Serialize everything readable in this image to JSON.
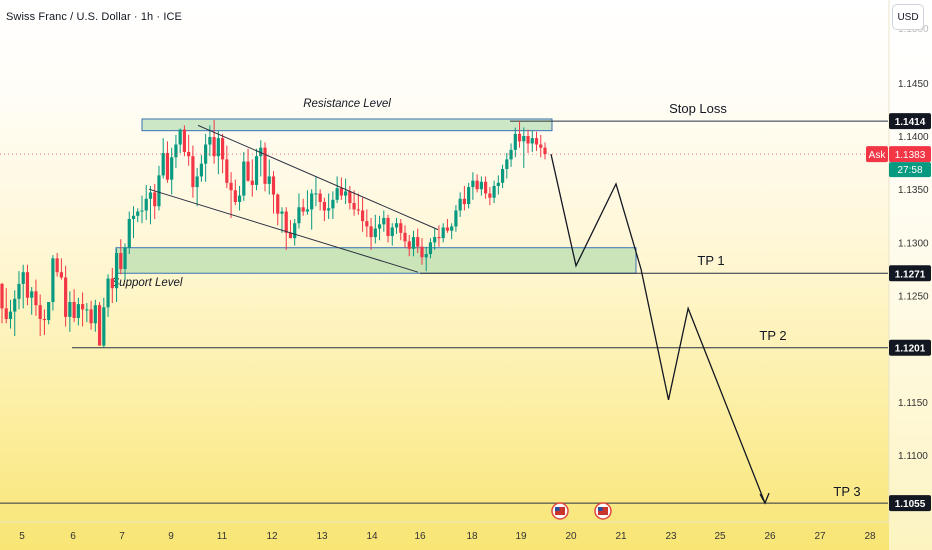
{
  "header": {
    "title": "Swiss Franc / U.S. Dollar · 1h · ICE",
    "currency_button": "USD"
  },
  "chart_data": {
    "type": "candlestick",
    "symbol": "Swiss Franc / U.S. Dollar",
    "timeframe": "1h",
    "exchange": "ICE",
    "price_axis": {
      "ticks": [
        1.11,
        1.115,
        1.125,
        1.13,
        1.135,
        1.14,
        1.145
      ],
      "tick_labels": [
        "1.1100",
        "1.1150",
        "1.1250",
        "1.1300",
        "1.1350",
        "1.1400",
        "1.1450"
      ],
      "range": [
        1.104,
        1.15
      ],
      "currency": "USD"
    },
    "time_axis": {
      "labels": [
        "5",
        "6",
        "7",
        "9",
        "11",
        "12",
        "13",
        "14",
        "16",
        "18",
        "19",
        "20",
        "21",
        "23",
        "25",
        "26",
        "27",
        "28"
      ]
    },
    "current_price": {
      "label": "Ask",
      "value": "1.1383",
      "countdown": "27:58",
      "color": "#f23645"
    },
    "levels": [
      {
        "name": "Stop Loss",
        "price": 1.1414,
        "label": "1.1414"
      },
      {
        "name": "TP 1",
        "price": 1.1271,
        "label": "1.1271"
      },
      {
        "name": "TP 2",
        "price": 1.1201,
        "label": "1.1201"
      },
      {
        "name": "TP 3",
        "price": 1.1055,
        "label": "1.1055"
      }
    ],
    "zones": [
      {
        "name": "Resistance Level",
        "price_low": 1.1405,
        "price_high": 1.1416
      },
      {
        "name": "Support Level",
        "price_low": 1.1271,
        "price_high": 1.1295
      }
    ],
    "wedge": {
      "upper": [
        [
          1.141,
          "10"
        ],
        [
          1.1312,
          "16"
        ]
      ],
      "lower": [
        [
          1.135,
          "8"
        ],
        [
          1.1272,
          "16"
        ]
      ]
    },
    "projection": [
      {
        "x": "19.6",
        "y": 1.1383
      },
      {
        "x": "20.1",
        "y": 1.1278
      },
      {
        "x": "20.9",
        "y": 1.1355
      },
      {
        "x": "21.8",
        "y": 1.1275
      },
      {
        "x": "22.9",
        "y": 1.1152
      },
      {
        "x": "23.7",
        "y": 1.1238
      },
      {
        "x": "25.9",
        "y": 1.1055
      }
    ],
    "candles": [
      [
        1.1261,
        1.1262,
        1.1224,
        1.1238
      ],
      [
        1.1238,
        1.1257,
        1.1224,
        1.1228
      ],
      [
        1.1228,
        1.1246,
        1.1219,
        1.1235
      ],
      [
        1.1235,
        1.1255,
        1.1212,
        1.1247
      ],
      [
        1.1247,
        1.1273,
        1.1237,
        1.1261
      ],
      [
        1.1261,
        1.1279,
        1.1238,
        1.1272
      ],
      [
        1.1272,
        1.1279,
        1.1241,
        1.1248
      ],
      [
        1.1248,
        1.1258,
        1.1232,
        1.1254
      ],
      [
        1.1254,
        1.1265,
        1.1231,
        1.1241
      ],
      [
        1.1241,
        1.1251,
        1.1212,
        1.1228
      ],
      [
        1.1228,
        1.1237,
        1.1213,
        1.1227
      ],
      [
        1.1227,
        1.1244,
        1.1223,
        1.1244
      ],
      [
        1.1244,
        1.1288,
        1.1236,
        1.1285
      ],
      [
        1.1285,
        1.129,
        1.1268,
        1.1272
      ],
      [
        1.1272,
        1.1285,
        1.1265,
        1.1267
      ],
      [
        1.1267,
        1.1278,
        1.1221,
        1.123
      ],
      [
        1.123,
        1.1254,
        1.1216,
        1.1244
      ],
      [
        1.1244,
        1.1256,
        1.1225,
        1.1229
      ],
      [
        1.1229,
        1.1248,
        1.1222,
        1.1242
      ],
      [
        1.1242,
        1.1253,
        1.1221,
        1.1237
      ],
      [
        1.1237,
        1.1243,
        1.1225,
        1.1237
      ],
      [
        1.1237,
        1.1245,
        1.1218,
        1.1224
      ],
      [
        1.1224,
        1.1246,
        1.1216,
        1.1241
      ],
      [
        1.1241,
        1.1244,
        1.1203,
        1.1203
      ],
      [
        1.1203,
        1.1248,
        1.1201,
        1.1239
      ],
      [
        1.1239,
        1.127,
        1.123,
        1.1266
      ],
      [
        1.1266,
        1.1276,
        1.1243,
        1.1257
      ],
      [
        1.1257,
        1.1294,
        1.1244,
        1.129
      ],
      [
        1.129,
        1.1303,
        1.127,
        1.1275
      ],
      [
        1.1275,
        1.1299,
        1.1265,
        1.1295
      ],
      [
        1.1295,
        1.1329,
        1.1289,
        1.1322
      ],
      [
        1.1322,
        1.1334,
        1.1304,
        1.1325
      ],
      [
        1.1325,
        1.1332,
        1.1319,
        1.1329
      ],
      [
        1.1329,
        1.1344,
        1.1318,
        1.133
      ],
      [
        1.133,
        1.1354,
        1.1321,
        1.1341
      ],
      [
        1.1341,
        1.1353,
        1.1317,
        1.1347
      ],
      [
        1.1347,
        1.1355,
        1.1322,
        1.1334
      ],
      [
        1.1334,
        1.1372,
        1.133,
        1.1363
      ],
      [
        1.1363,
        1.1398,
        1.136,
        1.1384
      ],
      [
        1.1384,
        1.1395,
        1.1356,
        1.1359
      ],
      [
        1.1359,
        1.1389,
        1.1345,
        1.138
      ],
      [
        1.138,
        1.1401,
        1.137,
        1.1392
      ],
      [
        1.1392,
        1.1407,
        1.1384,
        1.1406
      ],
      [
        1.1406,
        1.141,
        1.1381,
        1.1385
      ],
      [
        1.1385,
        1.1401,
        1.1372,
        1.1381
      ],
      [
        1.1381,
        1.1391,
        1.1342,
        1.1352
      ],
      [
        1.1352,
        1.137,
        1.1334,
        1.1362
      ],
      [
        1.1362,
        1.1382,
        1.1357,
        1.1374
      ],
      [
        1.1374,
        1.1402,
        1.1357,
        1.1392
      ],
      [
        1.1392,
        1.141,
        1.1381,
        1.1399
      ],
      [
        1.1399,
        1.1415,
        1.1374,
        1.1381
      ],
      [
        1.1381,
        1.1405,
        1.1364,
        1.1398
      ],
      [
        1.1398,
        1.1402,
        1.1365,
        1.1378
      ],
      [
        1.1378,
        1.1391,
        1.1351,
        1.1356
      ],
      [
        1.1356,
        1.1366,
        1.1323,
        1.1349
      ],
      [
        1.1349,
        1.1359,
        1.1335,
        1.1338
      ],
      [
        1.1338,
        1.1353,
        1.133,
        1.1344
      ],
      [
        1.1344,
        1.1385,
        1.1339,
        1.1376
      ],
      [
        1.1376,
        1.1388,
        1.1357,
        1.1358
      ],
      [
        1.1358,
        1.1378,
        1.1343,
        1.1354
      ],
      [
        1.1354,
        1.1388,
        1.1349,
        1.1381
      ],
      [
        1.1381,
        1.1396,
        1.1362,
        1.1389
      ],
      [
        1.1389,
        1.1394,
        1.1348,
        1.1355
      ],
      [
        1.1355,
        1.1378,
        1.1345,
        1.1362
      ],
      [
        1.1362,
        1.1367,
        1.1327,
        1.1345
      ],
      [
        1.1345,
        1.1346,
        1.1316,
        1.1327
      ],
      [
        1.1327,
        1.1333,
        1.1309,
        1.1329
      ],
      [
        1.1329,
        1.1333,
        1.1293,
        1.1309
      ],
      [
        1.1309,
        1.1321,
        1.1304,
        1.1304
      ],
      [
        1.1304,
        1.1322,
        1.1297,
        1.1318
      ],
      [
        1.1318,
        1.1346,
        1.1313,
        1.1333
      ],
      [
        1.1333,
        1.1341,
        1.1325,
        1.1329
      ],
      [
        1.1329,
        1.1349,
        1.1326,
        1.1331
      ],
      [
        1.1331,
        1.135,
        1.1312,
        1.1346
      ],
      [
        1.1346,
        1.1362,
        1.1334,
        1.1346
      ],
      [
        1.1346,
        1.135,
        1.133,
        1.1338
      ],
      [
        1.1338,
        1.1342,
        1.132,
        1.133
      ],
      [
        1.133,
        1.1346,
        1.1322,
        1.1332
      ],
      [
        1.1332,
        1.1348,
        1.1322,
        1.134
      ],
      [
        1.134,
        1.1362,
        1.1337,
        1.1351
      ],
      [
        1.1351,
        1.1361,
        1.134,
        1.1344
      ],
      [
        1.1344,
        1.136,
        1.1336,
        1.1348
      ],
      [
        1.1348,
        1.1353,
        1.1331,
        1.1337
      ],
      [
        1.1337,
        1.1349,
        1.1325,
        1.1331
      ],
      [
        1.1331,
        1.1346,
        1.1326,
        1.133
      ],
      [
        1.133,
        1.1342,
        1.131,
        1.132
      ],
      [
        1.132,
        1.1331,
        1.1305,
        1.1315
      ],
      [
        1.1315,
        1.1323,
        1.1293,
        1.1305
      ],
      [
        1.1305,
        1.1326,
        1.1299,
        1.1313
      ],
      [
        1.1313,
        1.1325,
        1.1302,
        1.1317
      ],
      [
        1.1317,
        1.133,
        1.131,
        1.1323
      ],
      [
        1.1323,
        1.1326,
        1.13,
        1.1306
      ],
      [
        1.1306,
        1.1318,
        1.1297,
        1.1314
      ],
      [
        1.1314,
        1.1323,
        1.1308,
        1.1318
      ],
      [
        1.1318,
        1.1322,
        1.1302,
        1.1309
      ],
      [
        1.1309,
        1.1316,
        1.1295,
        1.1301
      ],
      [
        1.1301,
        1.1307,
        1.1287,
        1.1294
      ],
      [
        1.1294,
        1.1311,
        1.1287,
        1.1305
      ],
      [
        1.1305,
        1.1313,
        1.129,
        1.1296
      ],
      [
        1.1296,
        1.1304,
        1.1279,
        1.1286
      ],
      [
        1.1286,
        1.1296,
        1.1273,
        1.1289
      ],
      [
        1.1289,
        1.1304,
        1.1285,
        1.13
      ],
      [
        1.13,
        1.1313,
        1.1293,
        1.1305
      ],
      [
        1.1305,
        1.1316,
        1.1296,
        1.1304
      ],
      [
        1.1304,
        1.1318,
        1.13,
        1.1314
      ],
      [
        1.1314,
        1.1322,
        1.1309,
        1.1311
      ],
      [
        1.1311,
        1.1318,
        1.1303,
        1.1315
      ],
      [
        1.1315,
        1.1335,
        1.131,
        1.133
      ],
      [
        1.133,
        1.1347,
        1.1324,
        1.1341
      ],
      [
        1.1341,
        1.1353,
        1.133,
        1.1336
      ],
      [
        1.1336,
        1.1356,
        1.1332,
        1.1352
      ],
      [
        1.1352,
        1.1366,
        1.134,
        1.1358
      ],
      [
        1.1358,
        1.1364,
        1.1347,
        1.135
      ],
      [
        1.135,
        1.1362,
        1.1344,
        1.1357
      ],
      [
        1.1357,
        1.1362,
        1.1341,
        1.1346
      ],
      [
        1.1346,
        1.1352,
        1.1335,
        1.1342
      ],
      [
        1.1342,
        1.1358,
        1.1337,
        1.1353
      ],
      [
        1.1353,
        1.1363,
        1.1345,
        1.1356
      ],
      [
        1.1356,
        1.1373,
        1.1351,
        1.1369
      ],
      [
        1.1369,
        1.1384,
        1.136,
        1.1378
      ],
      [
        1.1378,
        1.1393,
        1.1371,
        1.1387
      ],
      [
        1.1387,
        1.1408,
        1.138,
        1.1402
      ],
      [
        1.1402,
        1.1414,
        1.1389,
        1.1395
      ],
      [
        1.1395,
        1.1408,
        1.137,
        1.14
      ],
      [
        1.14,
        1.1406,
        1.1384,
        1.1393
      ],
      [
        1.1393,
        1.1405,
        1.1385,
        1.1398
      ],
      [
        1.1398,
        1.1404,
        1.1386,
        1.1392
      ],
      [
        1.1392,
        1.1401,
        1.138,
        1.1389
      ],
      [
        1.1389,
        1.1394,
        1.1378,
        1.1383
      ]
    ]
  }
}
